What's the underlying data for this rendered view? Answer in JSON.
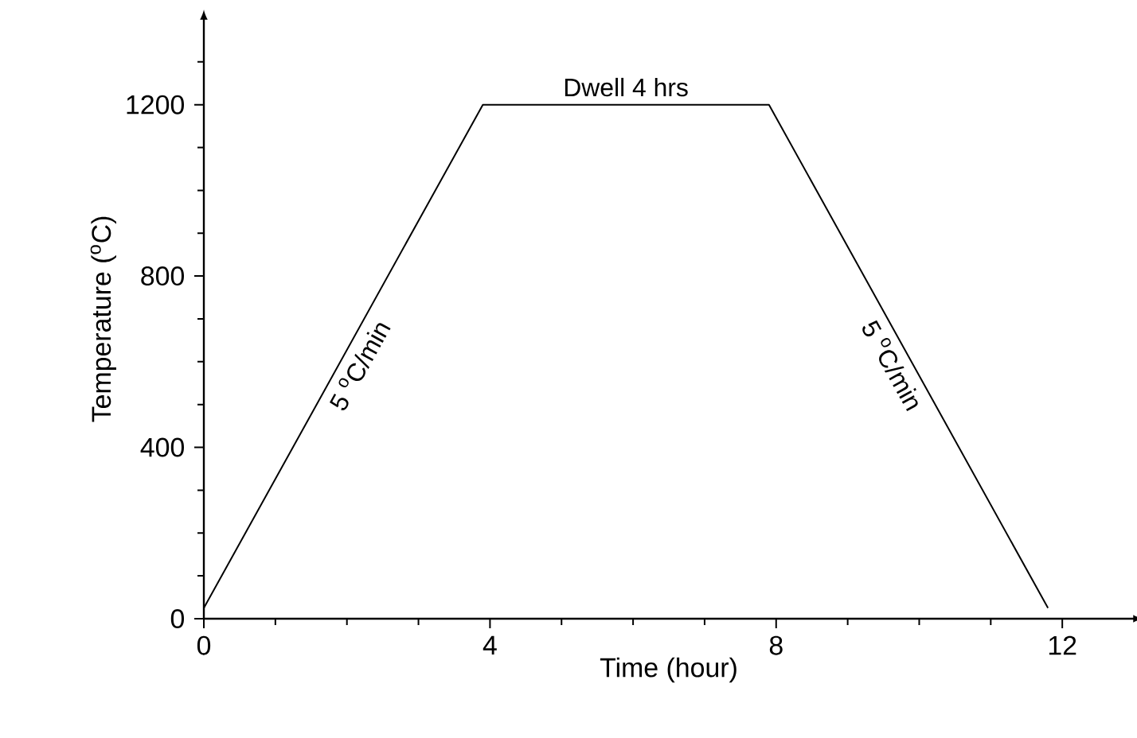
{
  "chart_data": {
    "type": "line",
    "xlabel": "Time (hour)",
    "ylabel": "Temperature ($^{o}$C)",
    "x": [
      0,
      3.9,
      7.9,
      11.8
    ],
    "series": [
      {
        "color": "#000000",
        "values": [
          25,
          1200,
          1200,
          25
        ]
      }
    ],
    "xlim": [
      0,
      13.0
    ],
    "ylim": [
      0,
      1400
    ],
    "xticks": [
      0,
      {
        "value": 1,
        "label": null
      },
      {
        "value": 2,
        "label": null
      },
      {
        "value": 3,
        "label": null
      },
      4,
      {
        "value": 5,
        "label": null
      },
      {
        "value": 6,
        "label": null
      },
      {
        "value": 7,
        "label": null
      },
      8,
      {
        "value": 9,
        "label": null
      },
      {
        "value": 10,
        "label": null
      },
      {
        "value": 11,
        "label": null
      },
      12
    ],
    "yticks": [
      0,
      {
        "value": 100,
        "label": null
      },
      {
        "value": 200,
        "label": null
      },
      {
        "value": 300,
        "label": null
      },
      400,
      {
        "value": 500,
        "label": null
      },
      {
        "value": 600,
        "label": null
      },
      {
        "value": 700,
        "label": null
      },
      800,
      {
        "value": 900,
        "label": null
      },
      {
        "value": 1000,
        "label": null
      },
      {
        "value": 1100,
        "label": null
      },
      1200,
      {
        "value": 1300,
        "label": null
      }
    ],
    "grid": false,
    "marker": "none",
    "line_style": "solid",
    "annotations": [
      "Dwell 4 hrs",
      "5 $^{o}$C/min",
      "5 $^{o}$C/min"
    ]
  }
}
